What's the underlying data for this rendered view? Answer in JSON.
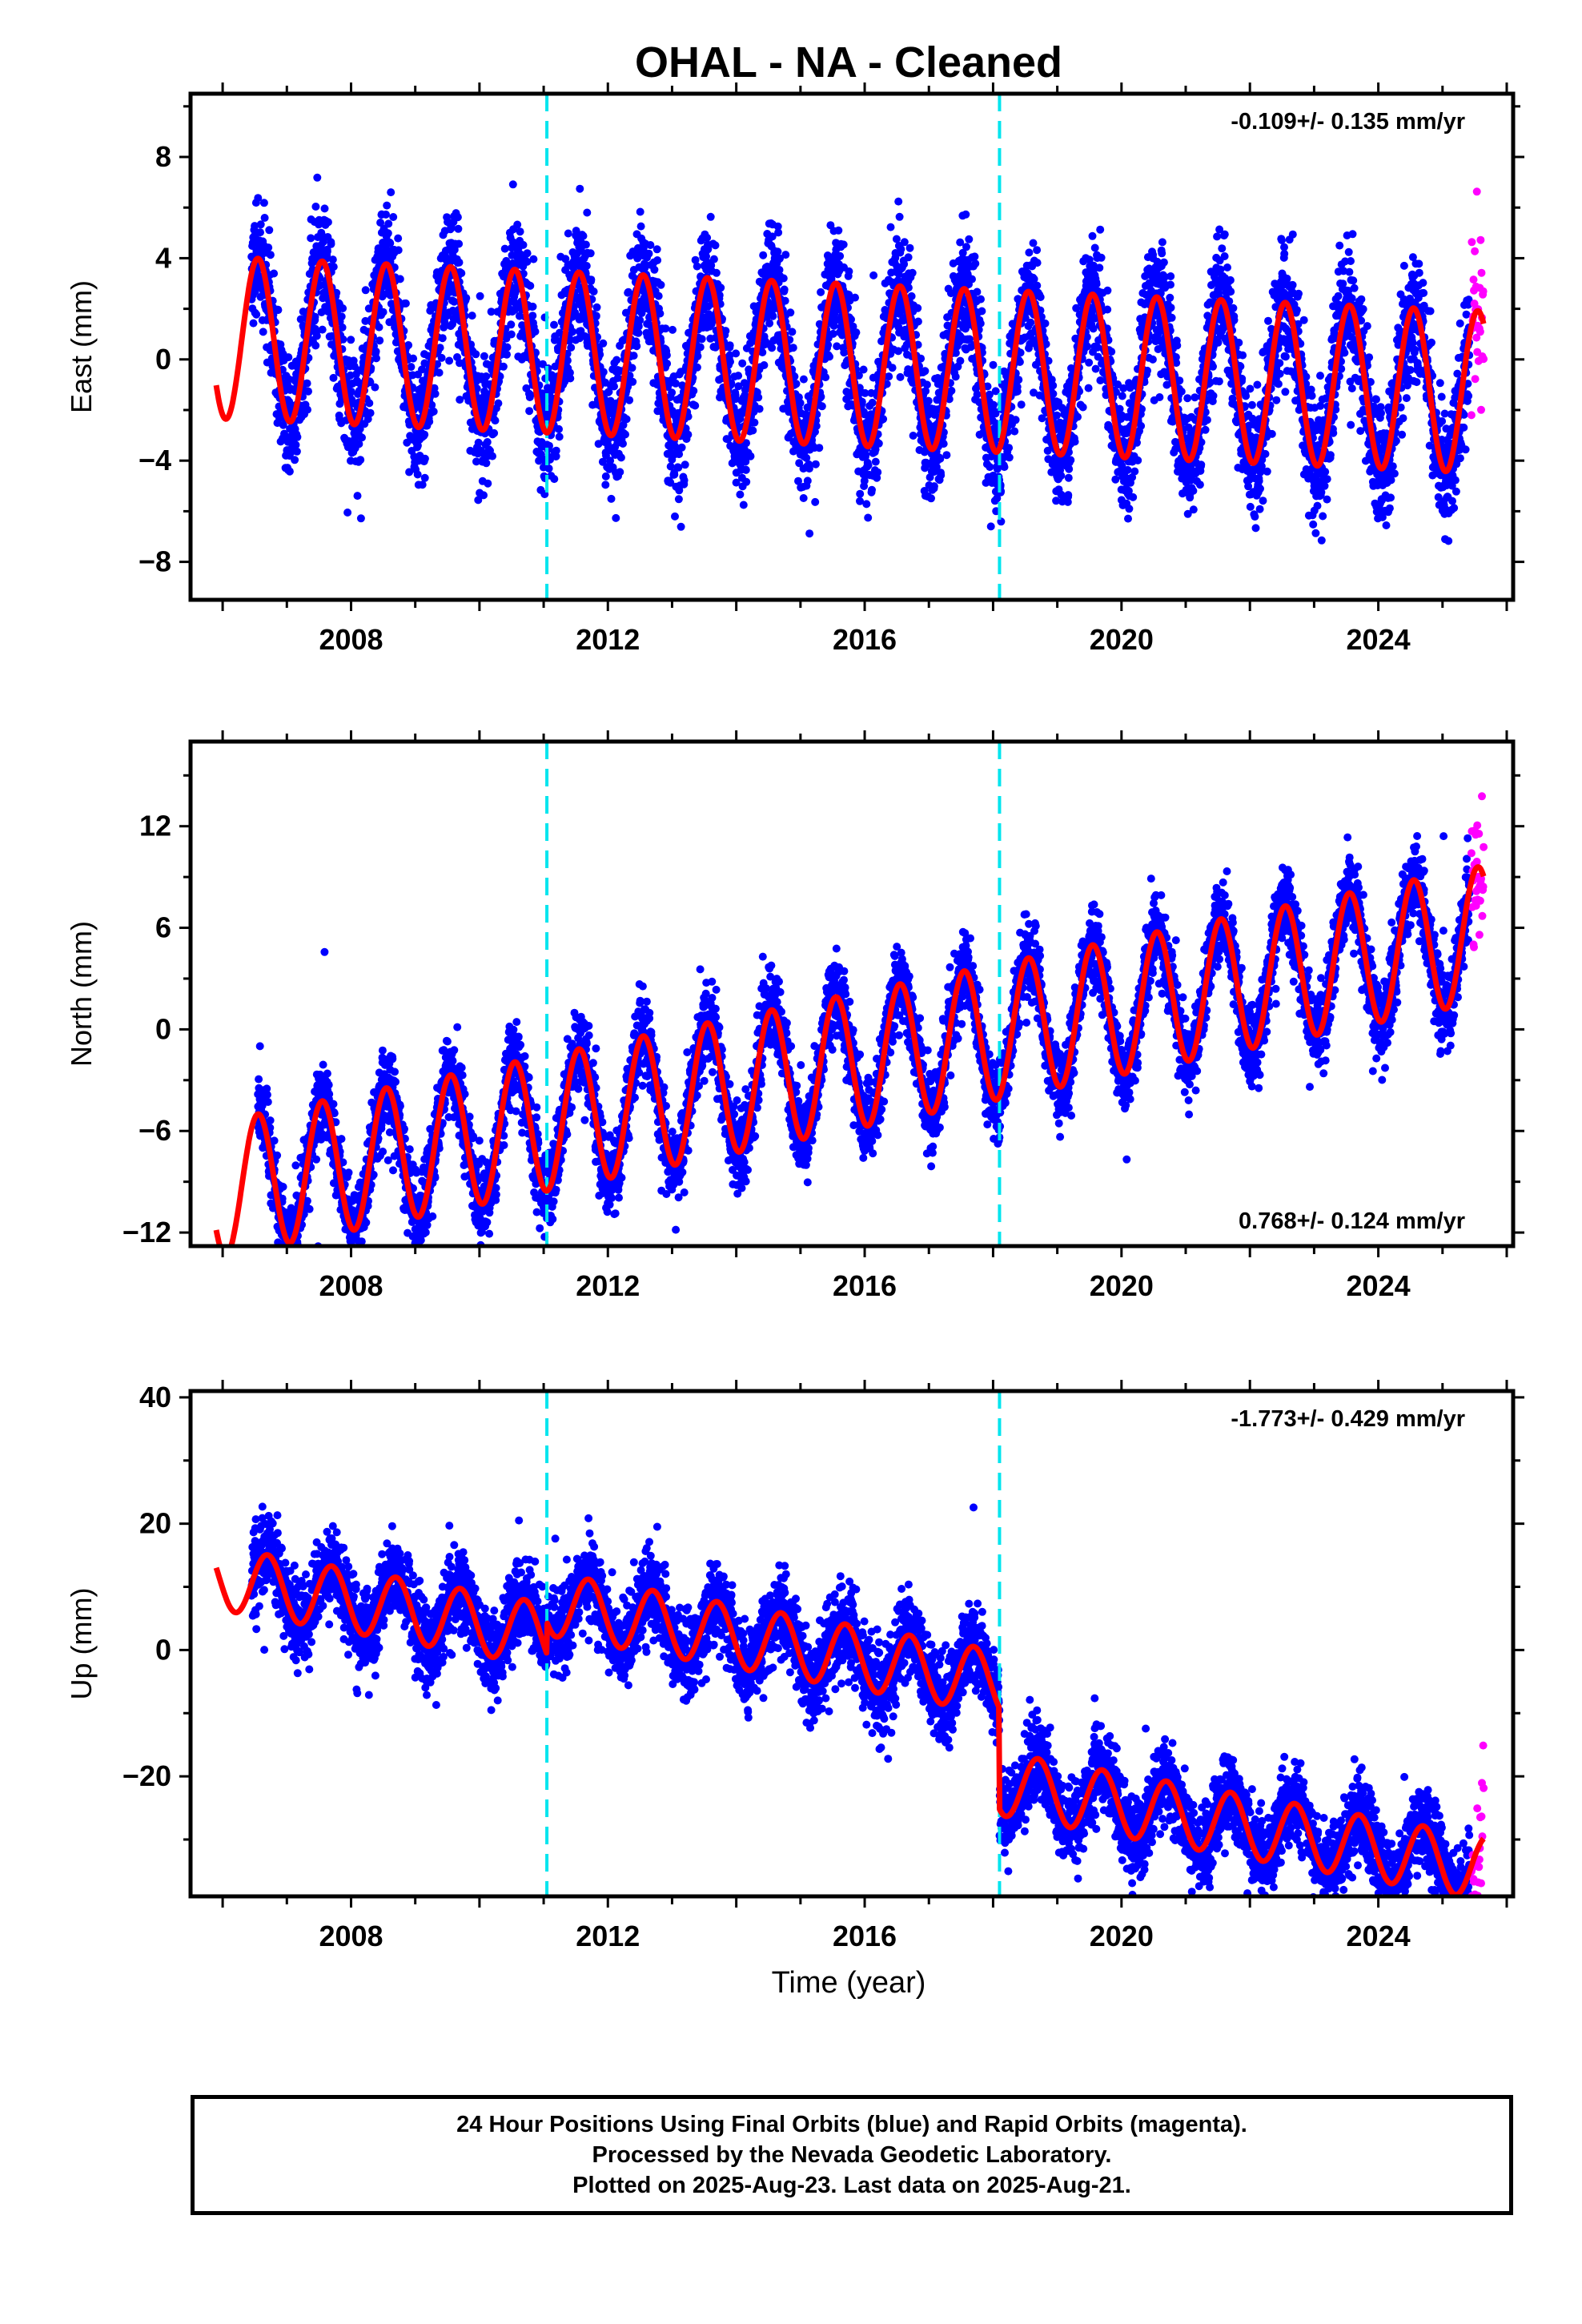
{
  "figure": {
    "title": "OHAL  - NA - Cleaned",
    "xlabel": "Time (year)"
  },
  "colors": {
    "final": "#0000ff",
    "rapid": "#ff00ff",
    "model": "#ff0000",
    "offset": "#00e5ee"
  },
  "footer": {
    "line1": "24 Hour Positions Using Final Orbits (blue) and Rapid Orbits (magenta).",
    "line2": "Processed by the Nevada Geodetic Laboratory.",
    "line3": "Plotted on 2025-Aug-23. Last data on 2025-Aug-21."
  },
  "chart_data": [
    {
      "type": "scatter",
      "ylabel": "East (mm)",
      "rate_label": "-0.109+/- 0.135 mm/yr",
      "rate_position": "top-right",
      "xlim": [
        2005.5,
        2026.1
      ],
      "ylim": [
        -9.5,
        10.5
      ],
      "yticks": [
        -8,
        -4,
        0,
        4,
        8
      ],
      "xticks": [
        2008,
        2012,
        2016,
        2020,
        2024
      ],
      "offsets": [
        2011.05,
        2018.1
      ],
      "model": {
        "offset": 0.8,
        "rate": -0.109,
        "amplitude": 3.2,
        "phase_year": 2006.55,
        "data_start": 2006.45,
        "model_start": 2005.9,
        "steps": [
          [
            2011.05,
            0.0
          ],
          [
            2018.1,
            0.0
          ]
        ]
      },
      "series": [
        {
          "name": "Final Orbits",
          "x_range": [
            2006.45,
            2025.42
          ],
          "noise": 1.2
        },
        {
          "name": "Rapid Orbits",
          "x_range": [
            2025.45,
            2025.64
          ],
          "noise": 2.2
        }
      ]
    },
    {
      "type": "scatter",
      "ylabel": "North (mm)",
      "rate_label": "0.768+/- 0.124 mm/yr",
      "rate_position": "bottom-right",
      "xlim": [
        2005.5,
        2026.1
      ],
      "ylim": [
        -12.8,
        17
      ],
      "yticks": [
        -12,
        -6,
        0,
        6,
        12
      ],
      "xticks": [
        2008,
        2012,
        2016,
        2020,
        2024
      ],
      "offsets": [
        2011.05,
        2018.1
      ],
      "model": {
        "offset": -9.0,
        "rate": 0.768,
        "amplitude": 4.0,
        "phase_year": 2006.55,
        "data_start": 2006.55,
        "model_start": 2005.9,
        "steps": [
          [
            2011.05,
            0.0
          ],
          [
            2018.1,
            0.0
          ]
        ]
      },
      "series": [
        {
          "name": "Final Orbits",
          "x_range": [
            2006.55,
            2025.42
          ],
          "noise": 1.2
        },
        {
          "name": "Rapid Orbits",
          "x_range": [
            2025.45,
            2025.64
          ],
          "noise": 2.0
        }
      ]
    },
    {
      "type": "scatter",
      "ylabel": "Up (mm)",
      "rate_label": "-1.773+/- 0.429 mm/yr",
      "rate_position": "top-right",
      "xlim": [
        2005.5,
        2026.1
      ],
      "ylim": [
        -39,
        41
      ],
      "yticks": [
        -20,
        0,
        20,
        40
      ],
      "xticks": [
        2008,
        2012,
        2016,
        2020,
        2024
      ],
      "offsets": [
        2011.05,
        2018.1
      ],
      "model": {
        "offset": 10.5,
        "rate": -1.773,
        "amplitude": 5.0,
        "phase_year": 2006.7,
        "data_start": 2006.45,
        "model_start": 2005.9,
        "steps": [
          [
            2011.05,
            5.0
          ],
          [
            2018.1,
            -16.0
          ]
        ]
      },
      "series": [
        {
          "name": "Final Orbits",
          "x_range": [
            2006.45,
            2025.42
          ],
          "noise": 3.2
        },
        {
          "name": "Rapid Orbits",
          "x_range": [
            2025.45,
            2025.64
          ],
          "noise": 6.0
        }
      ]
    }
  ]
}
